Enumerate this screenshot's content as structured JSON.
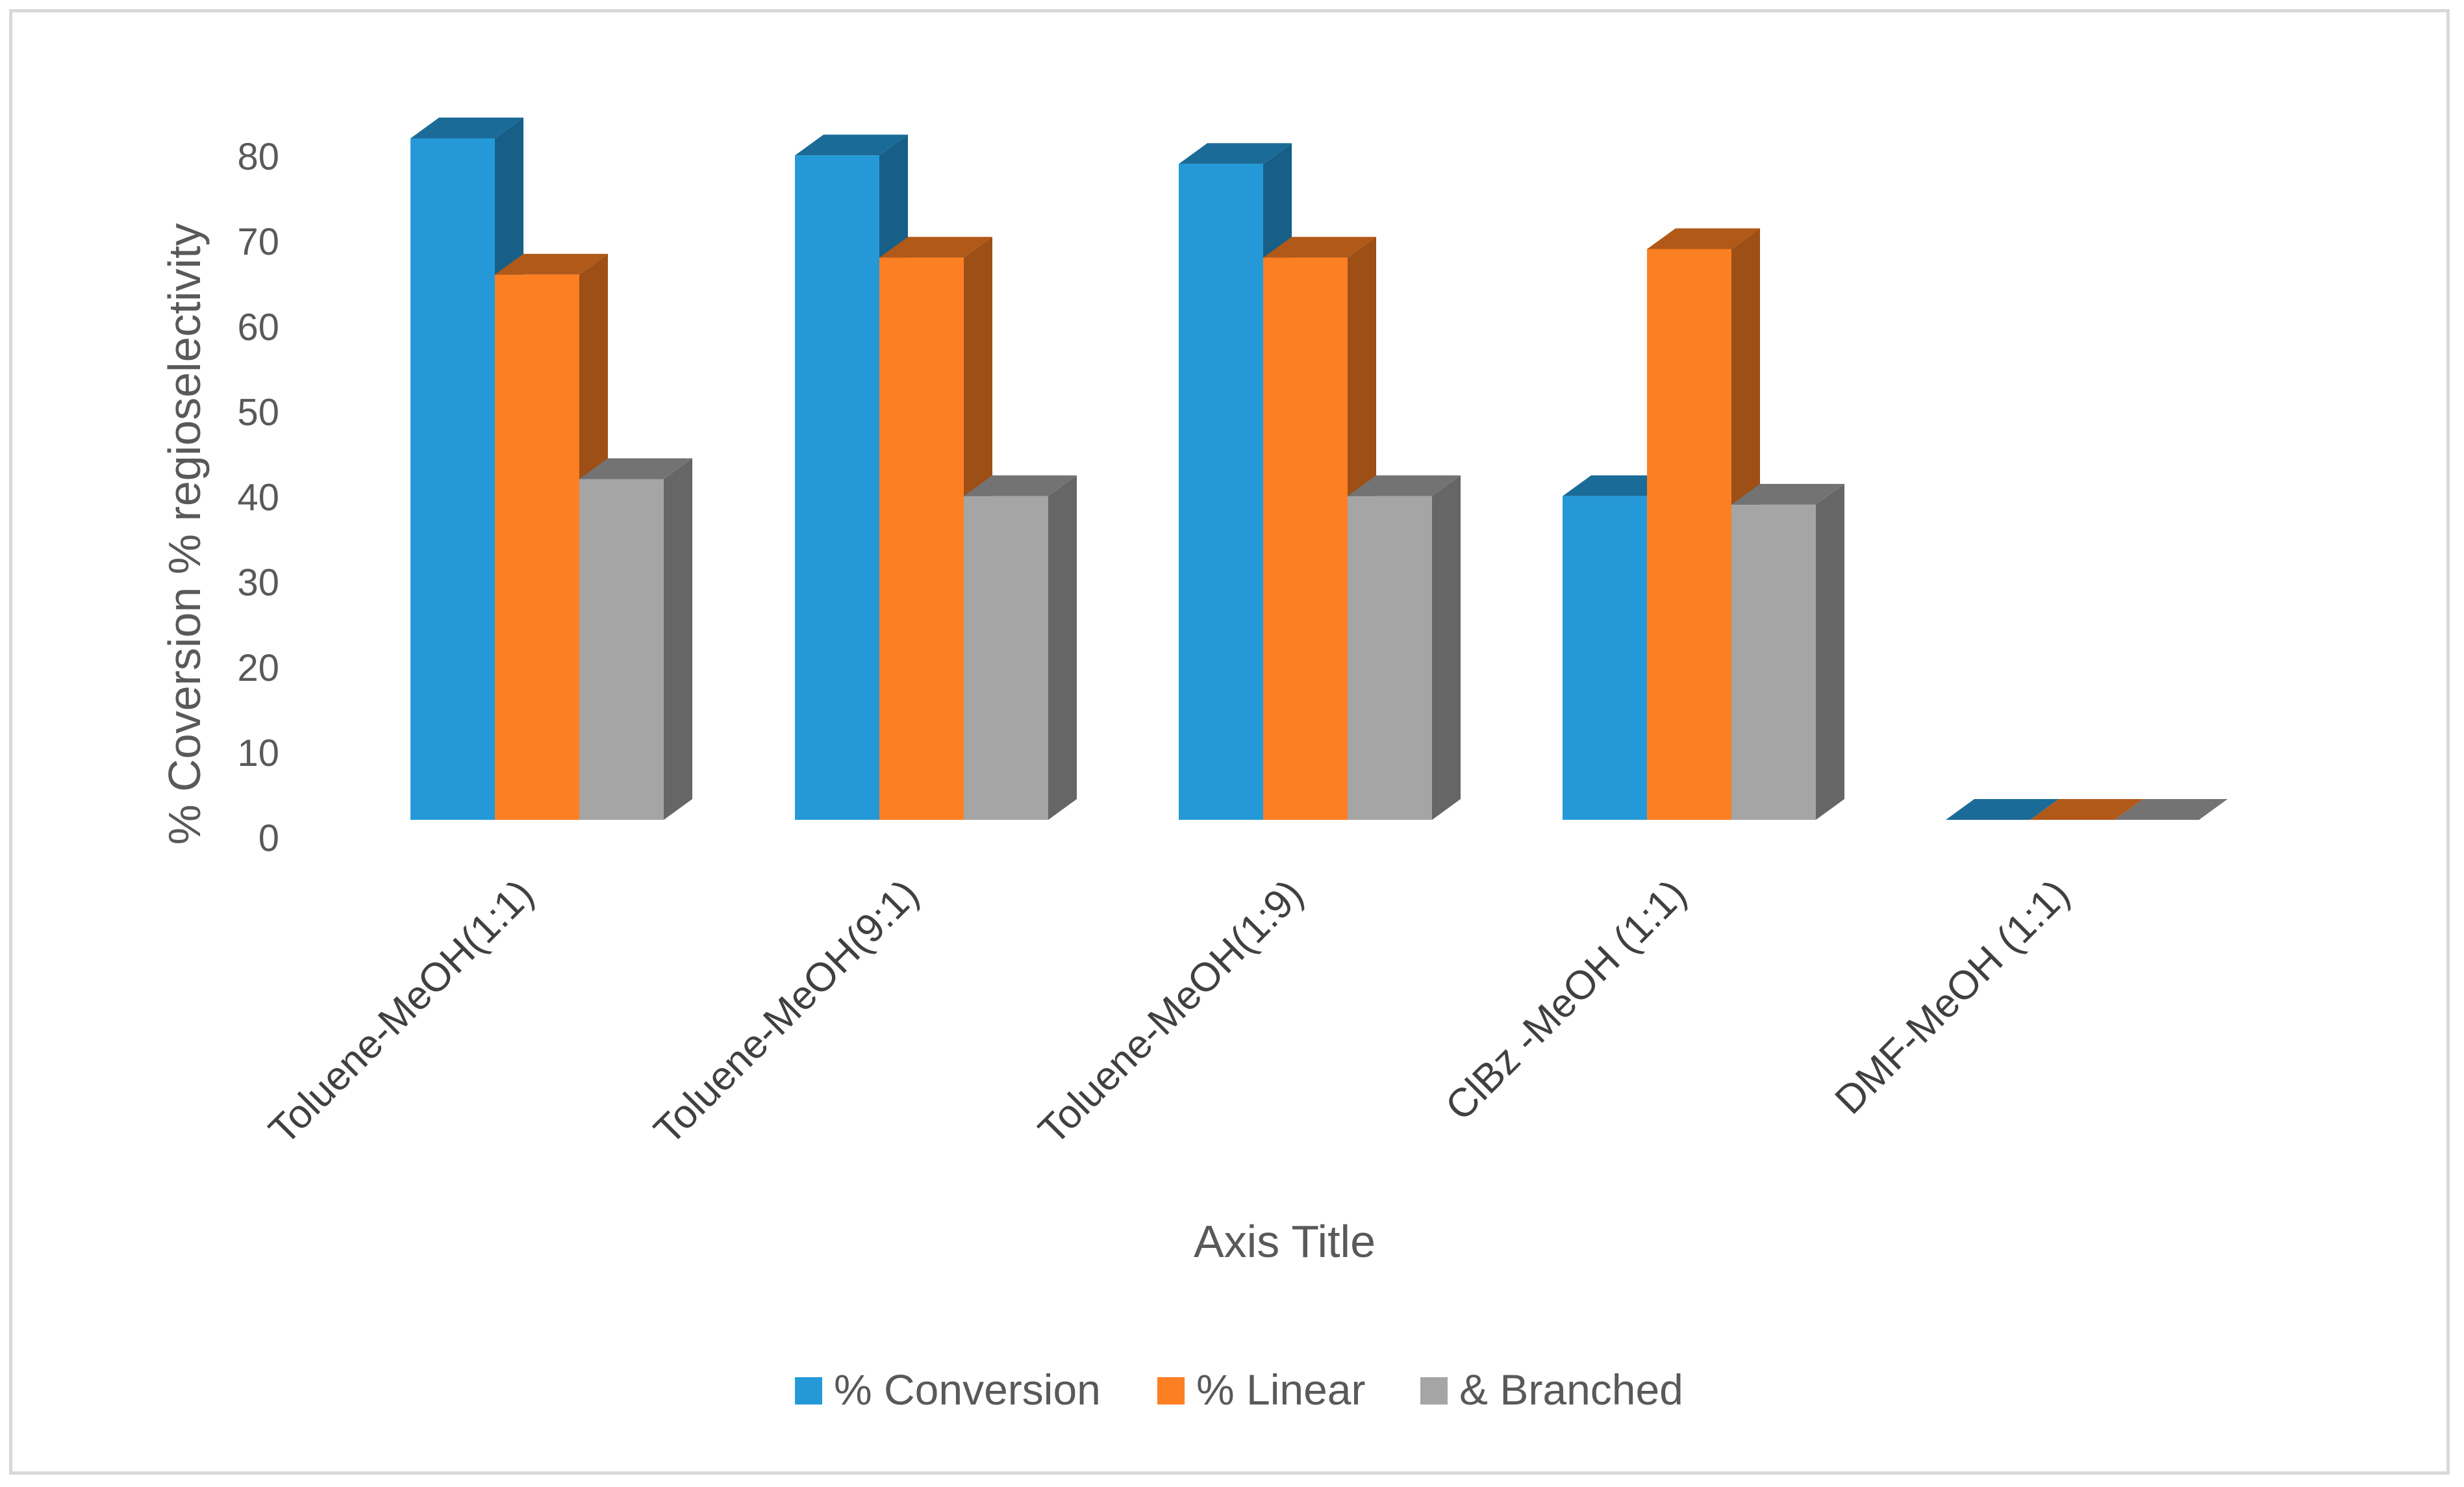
{
  "chart_data": {
    "type": "bar",
    "style": "3d-clustered-column",
    "title": "",
    "xlabel": "Axis Title",
    "ylabel": "% Coversion % regioselectivity",
    "ylim": [
      0,
      80
    ],
    "yticks": [
      "0",
      "10",
      "20",
      "30",
      "40",
      "50",
      "60",
      "70",
      "80"
    ],
    "categories": [
      "Toluene-MeOH(1:1)",
      "Toluene-MeOH(9:1)",
      "Toluene-MeOH(1:9)",
      "ClBz -MeOH  (1:1)",
      "DMF-MeOH    (1:1)"
    ],
    "series": [
      {
        "name": "% Conversion",
        "color": "#2599d8",
        "values": [
          80,
          78,
          77,
          38,
          0
        ]
      },
      {
        "name": "% Linear",
        "color": "#fd7f23",
        "values": [
          64,
          66,
          66,
          67,
          0
        ]
      },
      {
        "name": "& Branched",
        "color": "#a5a5a5",
        "values": [
          40,
          38,
          38,
          37,
          0
        ]
      }
    ],
    "grid": false,
    "legend_position": "bottom"
  }
}
